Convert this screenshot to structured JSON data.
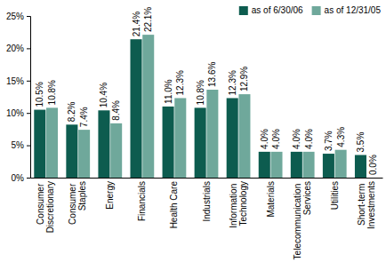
{
  "chart_data": {
    "type": "bar",
    "categories": [
      "Consumer Discretionary",
      "Consumer Staples",
      "Energy",
      "Financials",
      "Health Care",
      "Industrials",
      "Information Technology",
      "Materials",
      "Telecommunication Services",
      "Utilities",
      "Short-term Investments"
    ],
    "series": [
      {
        "name": "as of 6/30/06",
        "color": "#0d5c4f",
        "values": [
          10.5,
          8.2,
          10.4,
          21.4,
          11.0,
          10.8,
          12.3,
          4.0,
          4.0,
          3.7,
          3.5
        ],
        "value_labels": [
          "10.5%",
          "8.2%",
          "10.4%",
          "21.4%",
          "11.0%",
          "10.8%",
          "12.3%",
          "4.0%",
          "4.0%",
          "3.7%",
          "3.5%"
        ]
      },
      {
        "name": "as of 12/31/05",
        "color": "#6fa89b",
        "values": [
          10.8,
          7.4,
          8.4,
          22.1,
          12.3,
          13.6,
          12.9,
          4.0,
          4.0,
          4.3,
          0.0
        ],
        "value_labels": [
          "10.8%",
          "7.4%",
          "8.4%",
          "22.1%",
          "12.3%",
          "13.6%",
          "12.9%",
          "4.0%",
          "4.0%",
          "4.3%",
          "0.0%"
        ]
      }
    ],
    "ylim": [
      0,
      25
    ],
    "yticks": [
      {
        "value": 0,
        "label": "0%"
      },
      {
        "value": 5,
        "label": "5%"
      },
      {
        "value": 10,
        "label": "10%"
      },
      {
        "value": 15,
        "label": "15%"
      },
      {
        "value": 20,
        "label": "20%"
      },
      {
        "value": 25,
        "label": "25%"
      }
    ],
    "grid": false,
    "legend": "top-right",
    "data_labels": true
  }
}
